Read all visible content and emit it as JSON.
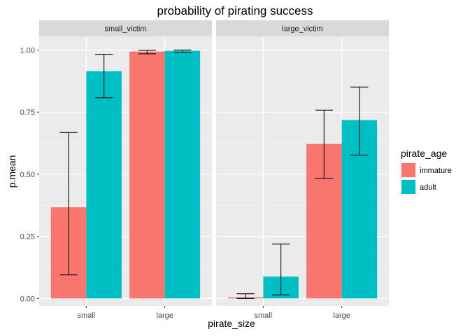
{
  "chart_data": {
    "type": "bar",
    "title": "probability of pirating success",
    "xlabel": "pirate_size",
    "ylabel": "p.mean",
    "categories": [
      "small",
      "large"
    ],
    "ylim": [
      -0.03,
      1.055
    ],
    "yticks": [
      0,
      0.25,
      0.5,
      0.75,
      1.0
    ],
    "ytick_labels": [
      "0.00",
      "0.25",
      "0.50",
      "0.75",
      "1.00"
    ],
    "grid": true,
    "legend": {
      "title": "pirate_age",
      "position": "right",
      "entries": [
        {
          "name": "immature",
          "color": "#F8766D"
        },
        {
          "name": "adult",
          "color": "#00BFC4"
        }
      ]
    },
    "facets": [
      {
        "label": "small_victim",
        "series": [
          {
            "name": "immature",
            "values": [
              0.367,
              0.994
            ],
            "lower": [
              0.095,
              0.985
            ],
            "upper": [
              0.668,
              0.999
            ]
          },
          {
            "name": "adult",
            "values": [
              0.915,
              0.997
            ],
            "lower": [
              0.808,
              0.99
            ],
            "upper": [
              0.983,
              1.0
            ]
          }
        ]
      },
      {
        "label": "large_victim",
        "series": [
          {
            "name": "immature",
            "values": [
              0.005,
              0.622
            ],
            "lower": [
              0.0,
              0.483
            ],
            "upper": [
              0.019,
              0.758
            ]
          },
          {
            "name": "adult",
            "values": [
              0.088,
              0.718
            ],
            "lower": [
              0.014,
              0.577
            ],
            "upper": [
              0.219,
              0.851
            ]
          }
        ]
      }
    ]
  }
}
